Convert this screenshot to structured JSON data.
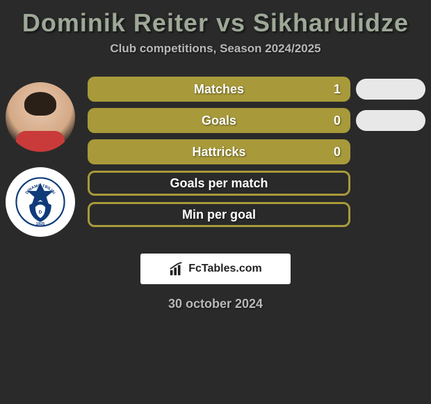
{
  "title": "Dominik Reiter vs Sikharulidze",
  "subtitle": "Club competitions, Season 2024/2025",
  "date": "30 october 2024",
  "footer_brand": "FcTables.com",
  "colors": {
    "bar_fill": "#a89a3a",
    "background": "#2a2a2a",
    "title_color": "#9ea897",
    "text_light": "#b8b8b8",
    "pill_right": "#e8e8e8"
  },
  "club_badge": {
    "name": "DINAMO TBILISI",
    "year": "1925",
    "primary": "#0f3a7a",
    "secondary": "#ffffff"
  },
  "stats": [
    {
      "label": "Matches",
      "value": "1",
      "filled": true,
      "right_pill": true
    },
    {
      "label": "Goals",
      "value": "0",
      "filled": true,
      "right_pill": true
    },
    {
      "label": "Hattricks",
      "value": "0",
      "filled": true,
      "right_pill": false
    },
    {
      "label": "Goals per match",
      "value": "",
      "filled": false,
      "right_pill": false
    },
    {
      "label": "Min per goal",
      "value": "",
      "filled": false,
      "right_pill": false
    }
  ]
}
